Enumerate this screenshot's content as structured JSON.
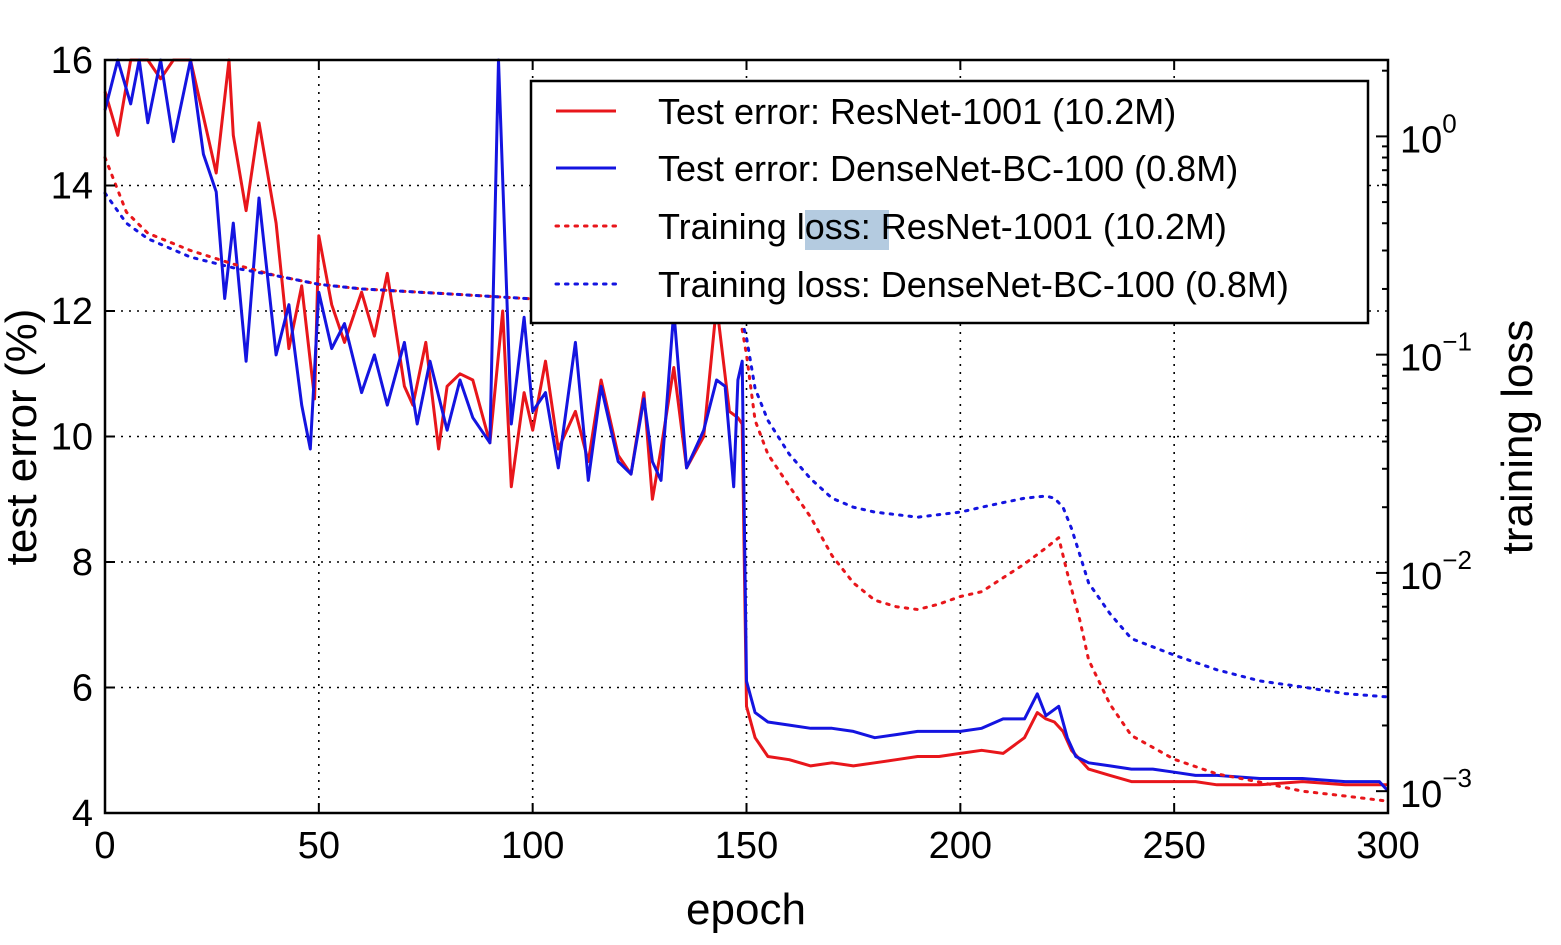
{
  "chart_data": {
    "type": "line",
    "xlabel": "epoch",
    "ylabel": "test error (%)",
    "y2label": "training loss",
    "xlim": [
      0,
      300
    ],
    "ylim": [
      4,
      16
    ],
    "y2lim_log10": [
      -3.1,
      0.35
    ],
    "y2scale": "log",
    "grid": true,
    "legend_position": "top-right",
    "x_ticks": [
      "0",
      "50",
      "100",
      "150",
      "200",
      "250",
      "300"
    ],
    "y_ticks": [
      "4",
      "6",
      "8",
      "10",
      "12",
      "14",
      "16"
    ],
    "y2_ticks": [
      {
        "base": "10",
        "exp": "0",
        "value": 1
      },
      {
        "base": "10",
        "exp": "−1",
        "value": 0.1
      },
      {
        "base": "10",
        "exp": "−2",
        "value": 0.01
      },
      {
        "base": "10",
        "exp": "−3",
        "value": 0.001
      }
    ],
    "highlight_word": "loss:",
    "series": [
      {
        "name": "Test error: ResNet-1001 (10.2M)",
        "color": "#e8161b",
        "style": "solid",
        "axis": "left",
        "x": [
          0,
          3,
          6,
          10,
          13,
          16,
          20,
          23,
          26,
          29,
          30,
          33,
          36,
          40,
          43,
          46,
          49,
          50,
          53,
          56,
          60,
          63,
          66,
          70,
          72,
          75,
          78,
          80,
          83,
          86,
          90,
          93,
          95,
          98,
          100,
          103,
          106,
          110,
          113,
          116,
          120,
          123,
          126,
          128,
          130,
          133,
          136,
          140,
          143,
          146,
          148,
          149,
          150,
          152,
          155,
          160,
          165,
          170,
          175,
          180,
          185,
          190,
          195,
          200,
          205,
          210,
          215,
          218,
          220,
          222,
          224,
          226,
          228,
          230,
          235,
          240,
          245,
          250,
          255,
          260,
          270,
          280,
          290,
          300
        ],
        "y": [
          15.5,
          14.8,
          16.2,
          16.5,
          15.7,
          17,
          16.6,
          15.1,
          14.2,
          17.4,
          14.8,
          13.6,
          15,
          13.4,
          11.4,
          12.4,
          10.6,
          13.2,
          12.1,
          11.5,
          12.3,
          11.6,
          12.6,
          10.8,
          10.5,
          11.5,
          9.8,
          10.8,
          11,
          10.9,
          9.9,
          12,
          9.2,
          10.7,
          10.1,
          11.2,
          9.8,
          10.4,
          9.6,
          10.9,
          9.7,
          9.4,
          10.7,
          9,
          9.8,
          11.1,
          9.5,
          10,
          12.1,
          10.4,
          10.3,
          10.2,
          5.7,
          5.2,
          4.9,
          4.85,
          4.75,
          4.8,
          4.75,
          4.8,
          4.85,
          4.9,
          4.9,
          4.95,
          5,
          4.95,
          5.2,
          5.6,
          5.5,
          5.45,
          5.3,
          5,
          4.85,
          4.7,
          4.6,
          4.5,
          4.5,
          4.5,
          4.5,
          4.45,
          4.45,
          4.5,
          4.45,
          4.45
        ]
      },
      {
        "name": "Test error: DenseNet-BC-100 (0.8M)",
        "color": "#1414e0",
        "style": "solid",
        "axis": "left",
        "x": [
          0,
          3,
          6,
          8,
          10,
          13,
          16,
          20,
          23,
          26,
          28,
          30,
          33,
          36,
          40,
          43,
          46,
          48,
          50,
          53,
          56,
          60,
          63,
          66,
          70,
          73,
          76,
          80,
          83,
          86,
          90,
          92,
          95,
          98,
          100,
          103,
          106,
          110,
          113,
          116,
          120,
          123,
          126,
          128,
          130,
          133,
          136,
          140,
          143,
          145,
          147,
          148,
          149,
          150,
          152,
          155,
          160,
          165,
          170,
          175,
          180,
          185,
          190,
          195,
          200,
          205,
          210,
          215,
          218,
          220,
          223,
          225,
          227,
          230,
          235,
          240,
          245,
          250,
          255,
          260,
          270,
          280,
          290,
          298,
          300
        ],
        "y": [
          15.2,
          16.3,
          15.3,
          16.4,
          15,
          16.6,
          14.7,
          16.5,
          14.5,
          13.9,
          12.2,
          13.4,
          11.2,
          13.8,
          11.3,
          12.1,
          10.5,
          9.8,
          12.3,
          11.4,
          11.8,
          10.7,
          11.3,
          10.5,
          11.5,
          10.2,
          11.2,
          10.1,
          10.9,
          10.3,
          9.9,
          16.1,
          10.2,
          11.9,
          10.4,
          10.7,
          9.5,
          11.5,
          9.3,
          10.8,
          9.6,
          9.4,
          10.6,
          9.6,
          9.3,
          12,
          9.5,
          10.1,
          10.9,
          10.8,
          9.2,
          10.9,
          11.2,
          6.1,
          5.6,
          5.45,
          5.4,
          5.35,
          5.35,
          5.3,
          5.2,
          5.25,
          5.3,
          5.3,
          5.3,
          5.35,
          5.5,
          5.5,
          5.9,
          5.55,
          5.7,
          5.2,
          4.9,
          4.8,
          4.75,
          4.7,
          4.7,
          4.65,
          4.6,
          4.6,
          4.55,
          4.55,
          4.5,
          4.5,
          4.35
        ]
      },
      {
        "name": "Training loss: ResNet-1001 (10.2M)",
        "color": "#e8161b",
        "style": "dotted",
        "axis": "right",
        "yscale": "log",
        "x": [
          0,
          5,
          10,
          20,
          30,
          40,
          50,
          60,
          80,
          100,
          120,
          140,
          148,
          150,
          152,
          155,
          160,
          165,
          170,
          175,
          180,
          185,
          190,
          195,
          200,
          205,
          210,
          215,
          220,
          223,
          225,
          228,
          230,
          235,
          240,
          250,
          260,
          270,
          280,
          290,
          300
        ],
        "y": [
          0.8,
          0.45,
          0.36,
          0.3,
          0.26,
          0.23,
          0.21,
          0.2,
          0.19,
          0.18,
          0.175,
          0.17,
          0.17,
          0.1,
          0.05,
          0.035,
          0.025,
          0.018,
          0.012,
          0.009,
          0.0075,
          0.007,
          0.0068,
          0.0072,
          0.0078,
          0.0082,
          0.0095,
          0.011,
          0.013,
          0.0145,
          0.01,
          0.006,
          0.004,
          0.0025,
          0.0018,
          0.0014,
          0.0012,
          0.0011,
          0.001,
          0.00095,
          0.0009
        ]
      },
      {
        "name": "Training loss: DenseNet-BC-100 (0.8M)",
        "color": "#1414e0",
        "style": "dotted",
        "axis": "right",
        "yscale": "log",
        "x": [
          0,
          5,
          10,
          20,
          30,
          40,
          50,
          60,
          80,
          100,
          120,
          140,
          148,
          150,
          152,
          155,
          160,
          165,
          170,
          175,
          180,
          185,
          190,
          195,
          200,
          205,
          210,
          215,
          220,
          222,
          224,
          226,
          228,
          230,
          235,
          240,
          250,
          260,
          270,
          280,
          290,
          300
        ],
        "y": [
          0.55,
          0.4,
          0.34,
          0.28,
          0.25,
          0.23,
          0.21,
          0.2,
          0.19,
          0.18,
          0.175,
          0.17,
          0.165,
          0.12,
          0.07,
          0.05,
          0.035,
          0.027,
          0.022,
          0.02,
          0.019,
          0.0185,
          0.018,
          0.0185,
          0.019,
          0.02,
          0.021,
          0.022,
          0.0225,
          0.022,
          0.02,
          0.016,
          0.012,
          0.009,
          0.0065,
          0.005,
          0.0042,
          0.0036,
          0.0032,
          0.003,
          0.0028,
          0.0027
        ]
      }
    ]
  }
}
